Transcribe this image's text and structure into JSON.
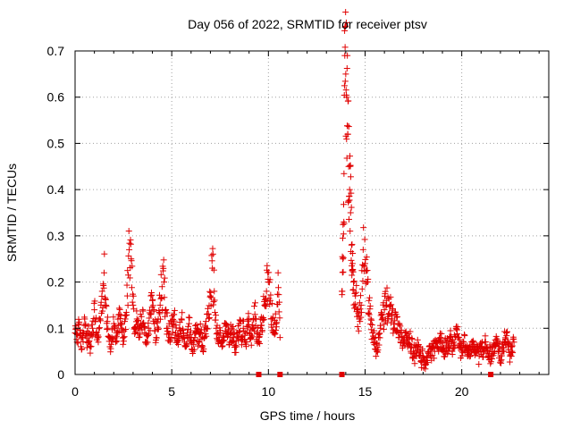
{
  "chart_data": {
    "type": "scatter",
    "title": "Day 056 of 2022, SRMTID for receiver ptsv",
    "xlabel": "GPS time / hours",
    "ylabel": "SRMTID / TECUs",
    "xlim": [
      0,
      24.5
    ],
    "ylim": [
      0,
      0.7
    ],
    "x_ticks": [
      0,
      5,
      10,
      15,
      20
    ],
    "x_tick_labels": [
      "0",
      "5",
      "10",
      "15",
      "20"
    ],
    "y_ticks": [
      0,
      0.1,
      0.2,
      0.3,
      0.4,
      0.5,
      0.6,
      0.7
    ],
    "y_tick_labels": [
      "0",
      "0.1",
      "0.2",
      "0.3",
      "0.4",
      "0.5",
      "0.6",
      "0.7"
    ],
    "grid": true,
    "marker": "plus",
    "color": "#e00000",
    "data_gap_markers_x": [
      9.5,
      10.6,
      13.8,
      21.5
    ],
    "series": [
      {
        "name": "SRMTID",
        "points": [
          [
            0.0,
            0.09
          ],
          [
            0.1,
            0.07
          ],
          [
            0.2,
            0.11
          ],
          [
            0.3,
            0.06
          ],
          [
            0.4,
            0.08
          ],
          [
            0.5,
            0.12
          ],
          [
            0.6,
            0.07
          ],
          [
            0.7,
            0.09
          ],
          [
            0.8,
            0.06
          ],
          [
            0.9,
            0.1
          ],
          [
            1.0,
            0.14
          ],
          [
            1.1,
            0.09
          ],
          [
            1.2,
            0.07
          ],
          [
            1.3,
            0.12
          ],
          [
            1.4,
            0.18
          ],
          [
            1.5,
            0.22
          ],
          [
            1.6,
            0.15
          ],
          [
            1.7,
            0.1
          ],
          [
            1.8,
            0.06
          ],
          [
            1.9,
            0.08
          ],
          [
            2.0,
            0.11
          ],
          [
            2.1,
            0.07
          ],
          [
            2.2,
            0.09
          ],
          [
            2.3,
            0.13
          ],
          [
            2.4,
            0.1
          ],
          [
            2.5,
            0.08
          ],
          [
            2.6,
            0.12
          ],
          [
            2.7,
            0.17
          ],
          [
            2.8,
            0.27
          ],
          [
            2.9,
            0.25
          ],
          [
            3.0,
            0.15
          ],
          [
            3.1,
            0.1
          ],
          [
            3.2,
            0.12
          ],
          [
            3.3,
            0.08
          ],
          [
            3.4,
            0.11
          ],
          [
            3.5,
            0.14
          ],
          [
            3.6,
            0.09
          ],
          [
            3.7,
            0.07
          ],
          [
            3.8,
            0.1
          ],
          [
            3.9,
            0.13
          ],
          [
            4.0,
            0.16
          ],
          [
            4.1,
            0.11
          ],
          [
            4.2,
            0.08
          ],
          [
            4.3,
            0.12
          ],
          [
            4.4,
            0.15
          ],
          [
            4.5,
            0.19
          ],
          [
            4.6,
            0.2
          ],
          [
            4.7,
            0.14
          ],
          [
            4.8,
            0.1
          ],
          [
            4.9,
            0.08
          ],
          [
            5.0,
            0.11
          ],
          [
            5.1,
            0.13
          ],
          [
            5.2,
            0.09
          ],
          [
            5.3,
            0.07
          ],
          [
            5.4,
            0.1
          ],
          [
            5.5,
            0.12
          ],
          [
            5.6,
            0.08
          ],
          [
            5.7,
            0.06
          ],
          [
            5.8,
            0.09
          ],
          [
            5.9,
            0.11
          ],
          [
            6.0,
            0.07
          ],
          [
            6.1,
            0.05
          ],
          [
            6.2,
            0.08
          ],
          [
            6.3,
            0.1
          ],
          [
            6.4,
            0.07
          ],
          [
            6.5,
            0.09
          ],
          [
            6.6,
            0.06
          ],
          [
            6.7,
            0.08
          ],
          [
            6.8,
            0.1
          ],
          [
            6.9,
            0.13
          ],
          [
            7.0,
            0.17
          ],
          [
            7.1,
            0.23
          ],
          [
            7.2,
            0.18
          ],
          [
            7.3,
            0.1
          ],
          [
            7.4,
            0.07
          ],
          [
            7.5,
            0.09
          ],
          [
            7.6,
            0.06
          ],
          [
            7.7,
            0.08
          ],
          [
            7.8,
            0.11
          ],
          [
            7.9,
            0.09
          ],
          [
            8.0,
            0.07
          ],
          [
            8.1,
            0.1
          ],
          [
            8.2,
            0.08
          ],
          [
            8.3,
            0.06
          ],
          [
            8.4,
            0.09
          ],
          [
            8.5,
            0.11
          ],
          [
            8.6,
            0.08
          ],
          [
            8.7,
            0.1
          ],
          [
            8.8,
            0.07
          ],
          [
            8.9,
            0.09
          ],
          [
            9.0,
            0.12
          ],
          [
            9.1,
            0.08
          ],
          [
            9.2,
            0.1
          ],
          [
            9.3,
            0.13
          ],
          [
            9.4,
            0.09
          ],
          [
            9.5,
            0.07
          ],
          [
            9.6,
            0.1
          ],
          [
            9.7,
            0.12
          ],
          [
            9.8,
            0.15
          ],
          [
            9.9,
            0.18
          ],
          [
            10.0,
            0.2
          ],
          [
            10.1,
            0.16
          ],
          [
            10.2,
            0.12
          ],
          [
            10.3,
            0.09
          ],
          [
            10.4,
            0.11
          ],
          [
            10.5,
            0.22
          ],
          [
            10.6,
            0.08
          ],
          [
            13.8,
            0.18
          ],
          [
            13.85,
            0.25
          ],
          [
            13.9,
            0.33
          ],
          [
            13.95,
            0.69
          ],
          [
            14.0,
            0.65
          ],
          [
            14.05,
            0.6
          ],
          [
            14.1,
            0.52
          ],
          [
            14.15,
            0.45
          ],
          [
            14.2,
            0.4
          ],
          [
            14.25,
            0.35
          ],
          [
            14.3,
            0.28
          ],
          [
            14.35,
            0.24
          ],
          [
            14.4,
            0.2
          ],
          [
            14.5,
            0.17
          ],
          [
            14.6,
            0.14
          ],
          [
            14.7,
            0.12
          ],
          [
            14.8,
            0.15
          ],
          [
            14.9,
            0.27
          ],
          [
            15.0,
            0.24
          ],
          [
            15.1,
            0.2
          ],
          [
            15.2,
            0.16
          ],
          [
            15.3,
            0.12
          ],
          [
            15.4,
            0.09
          ],
          [
            15.5,
            0.07
          ],
          [
            15.6,
            0.05
          ],
          [
            15.7,
            0.08
          ],
          [
            15.8,
            0.1
          ],
          [
            15.9,
            0.12
          ],
          [
            16.0,
            0.14
          ],
          [
            16.1,
            0.16
          ],
          [
            16.2,
            0.13
          ],
          [
            16.3,
            0.15
          ],
          [
            16.4,
            0.12
          ],
          [
            16.5,
            0.1
          ],
          [
            16.6,
            0.13
          ],
          [
            16.7,
            0.11
          ],
          [
            16.8,
            0.09
          ],
          [
            16.9,
            0.08
          ],
          [
            17.0,
            0.07
          ],
          [
            17.1,
            0.09
          ],
          [
            17.2,
            0.06
          ],
          [
            17.3,
            0.08
          ],
          [
            17.4,
            0.06
          ],
          [
            17.5,
            0.05
          ],
          [
            17.6,
            0.04
          ],
          [
            17.7,
            0.06
          ],
          [
            17.8,
            0.05
          ],
          [
            17.9,
            0.03
          ],
          [
            18.0,
            0.04
          ],
          [
            18.1,
            0.02
          ],
          [
            18.2,
            0.03
          ],
          [
            18.3,
            0.05
          ],
          [
            18.4,
            0.04
          ],
          [
            18.5,
            0.06
          ],
          [
            18.6,
            0.05
          ],
          [
            18.7,
            0.07
          ],
          [
            18.8,
            0.05
          ],
          [
            18.9,
            0.08
          ],
          [
            19.0,
            0.06
          ],
          [
            19.1,
            0.05
          ],
          [
            19.2,
            0.07
          ],
          [
            19.3,
            0.06
          ],
          [
            19.4,
            0.08
          ],
          [
            19.5,
            0.05
          ],
          [
            19.6,
            0.07
          ],
          [
            19.7,
            0.1
          ],
          [
            19.8,
            0.08
          ],
          [
            19.9,
            0.06
          ],
          [
            20.0,
            0.05
          ],
          [
            20.1,
            0.07
          ],
          [
            20.2,
            0.06
          ],
          [
            20.3,
            0.04
          ],
          [
            20.4,
            0.06
          ],
          [
            20.5,
            0.05
          ],
          [
            20.6,
            0.07
          ],
          [
            20.7,
            0.06
          ],
          [
            20.8,
            0.05
          ],
          [
            20.9,
            0.04
          ],
          [
            21.0,
            0.06
          ],
          [
            21.1,
            0.05
          ],
          [
            21.2,
            0.07
          ],
          [
            21.3,
            0.06
          ],
          [
            21.4,
            0.05
          ],
          [
            21.5,
            0.04
          ],
          [
            21.6,
            0.06
          ],
          [
            21.7,
            0.05
          ],
          [
            21.8,
            0.07
          ],
          [
            21.9,
            0.06
          ],
          [
            22.0,
            0.04
          ],
          [
            22.1,
            0.05
          ],
          [
            22.2,
            0.07
          ],
          [
            22.3,
            0.09
          ],
          [
            22.4,
            0.06
          ],
          [
            22.5,
            0.04
          ],
          [
            22.6,
            0.05
          ],
          [
            22.7,
            0.07
          ]
        ]
      }
    ]
  }
}
